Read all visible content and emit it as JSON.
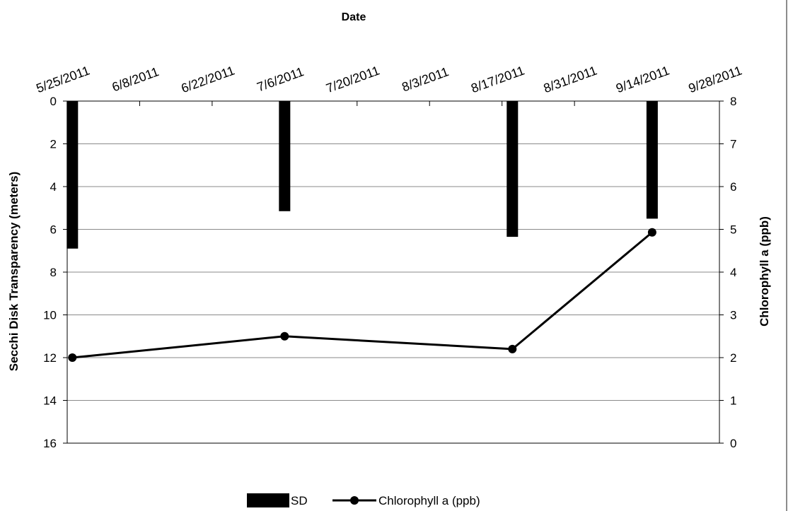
{
  "chart_data": {
    "type": "bar+line",
    "x_axis": {
      "label": "Date",
      "position": "top",
      "ticks": [
        "5/25/2011",
        "6/8/2011",
        "6/22/2011",
        "7/6/2011",
        "7/20/2011",
        "8/3/2011",
        "8/17/2011",
        "8/31/2011",
        "9/14/2011",
        "9/28/2011"
      ],
      "min": "2011-05-25",
      "max": "2011-09-28"
    },
    "y_left": {
      "label": "Secchi Disk Transparency (meters)",
      "min": 0,
      "max": 16,
      "step": 2,
      "reversed": true,
      "ticks": [
        "0",
        "2",
        "4",
        "6",
        "8",
        "10",
        "12",
        "14",
        "16"
      ]
    },
    "y_right": {
      "label": "Chlorophyll a (ppb)",
      "min": 0,
      "max": 8,
      "step": 1,
      "ticks": [
        "8",
        "7",
        "6",
        "5",
        "4",
        "3",
        "2",
        "1",
        "0"
      ]
    },
    "series": [
      {
        "name": "SD",
        "type": "bar",
        "axis": "left",
        "color": "#000000",
        "points": [
          {
            "date": "2011-05-26",
            "value": 6.9
          },
          {
            "date": "2011-07-06",
            "value": 5.15
          },
          {
            "date": "2011-08-19",
            "value": 6.35
          },
          {
            "date": "2011-09-15",
            "value": 5.5
          }
        ]
      },
      {
        "name": "Chlorophyll a (ppb)",
        "type": "line",
        "axis": "right",
        "color": "#000000",
        "marker": "circle",
        "points": [
          {
            "date": "2011-05-26",
            "value": 2.0
          },
          {
            "date": "2011-07-06",
            "value": 2.5
          },
          {
            "date": "2011-08-19",
            "value": 2.2
          },
          {
            "date": "2011-09-15",
            "value": 4.93
          }
        ]
      }
    ],
    "grid": "horizontal",
    "legend_position": "bottom"
  }
}
